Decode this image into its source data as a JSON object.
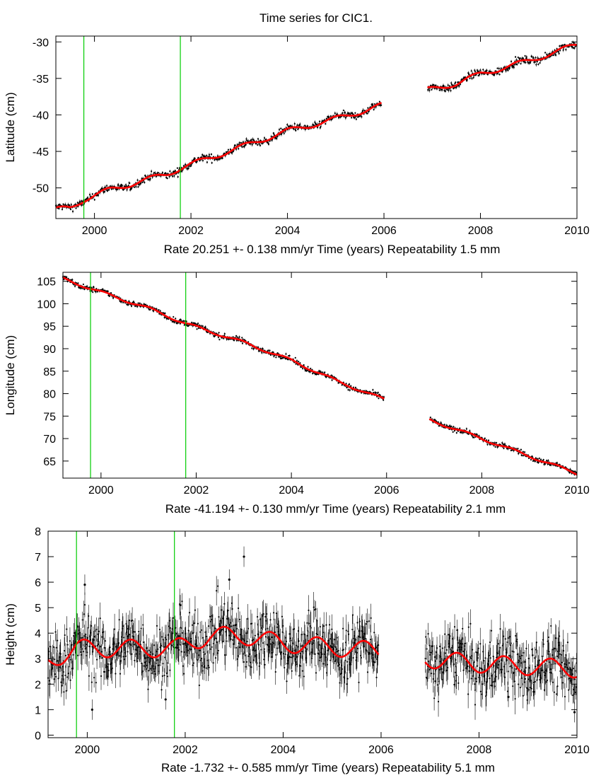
{
  "figure_title": "Time series for CIC1.",
  "colors": {
    "data": "#000000",
    "fit": "#ff0000",
    "event_line": "#00cc00"
  },
  "chart_data": [
    {
      "type": "scatter",
      "id": "latitude",
      "title": "Time series for CIC1.",
      "ylabel": "Latitude (cm)",
      "xlabel": "Rate 20.251 +- 0.138 mm/yr    Time (years)    Repeatability 1.5 mm",
      "xlim": [
        1999.2,
        2010.0
      ],
      "ylim": [
        -54.2,
        -29.2
      ],
      "xticks": [
        2000,
        2002,
        2004,
        2006,
        2008,
        2010
      ],
      "yticks": [
        -50,
        -45,
        -40,
        -35,
        -30
      ],
      "event_lines": [
        1999.78,
        2001.78
      ],
      "gap": [
        2005.95,
        2006.9
      ],
      "trend_knots": [
        [
          1999.2,
          -53.0
        ],
        [
          1999.5,
          -52.7
        ],
        [
          1999.78,
          -51.6
        ],
        [
          2000.3,
          -50.3
        ],
        [
          2000.8,
          -49.4
        ],
        [
          2001.5,
          -48.1
        ],
        [
          2001.78,
          -47.3
        ],
        [
          2002.3,
          -46.1
        ],
        [
          2003.0,
          -44.5
        ],
        [
          2004.0,
          -42.2
        ],
        [
          2004.8,
          -40.9
        ],
        [
          2005.5,
          -39.6
        ],
        [
          2005.95,
          -38.7
        ],
        [
          2006.9,
          -36.6
        ],
        [
          2007.5,
          -35.7
        ],
        [
          2008.0,
          -34.4
        ],
        [
          2009.0,
          -32.6
        ],
        [
          2010.0,
          -30.4
        ]
      ],
      "residual_amplitude": 0.25,
      "fit_wobble": 0.35,
      "error_bar": 0.2
    },
    {
      "type": "scatter",
      "id": "longitude",
      "ylabel": "Longitude (cm)",
      "xlabel": "Rate -41.194 +- 0.130 mm/yr    Time (years)    Repeatability 2.1 mm",
      "xlim": [
        1999.2,
        2010.0
      ],
      "ylim": [
        61.2,
        107.0
      ],
      "xticks": [
        2000,
        2002,
        2004,
        2006,
        2008,
        2010
      ],
      "yticks": [
        65,
        70,
        75,
        80,
        85,
        90,
        95,
        100,
        105
      ],
      "event_lines": [
        1999.78,
        2001.78
      ],
      "gap": [
        2005.95,
        2006.9
      ],
      "trend_knots": [
        [
          1999.2,
          105.6
        ],
        [
          1999.78,
          103.4
        ],
        [
          2000.3,
          101.5
        ],
        [
          2001.0,
          99.0
        ],
        [
          2001.78,
          95.6
        ],
        [
          2003.0,
          91.4
        ],
        [
          2004.0,
          87.4
        ],
        [
          2005.0,
          82.6
        ],
        [
          2005.95,
          78.7
        ],
        [
          2006.9,
          74.2
        ],
        [
          2008.0,
          70.0
        ],
        [
          2009.0,
          66.1
        ],
        [
          2010.0,
          62.2
        ]
      ],
      "residual_amplitude": 0.3,
      "fit_wobble": 0.3,
      "error_bar": 0.25
    },
    {
      "type": "scatter",
      "id": "height",
      "ylabel": "Height (cm)",
      "xlabel": "Rate -1.732 +- 0.585 mm/yr    Time (years)    Repeatability 5.1 mm",
      "xlim": [
        1999.2,
        2010.0
      ],
      "ylim": [
        -0.1,
        8.0
      ],
      "xticks": [
        2000,
        2002,
        2004,
        2006,
        2008,
        2010
      ],
      "yticks": [
        0,
        1,
        2,
        3,
        4,
        5,
        6,
        7,
        8
      ],
      "event_lines": [
        1999.78,
        2001.78
      ],
      "gap": [
        2005.95,
        2006.9
      ],
      "trend_knots": [
        [
          1999.2,
          2.9
        ],
        [
          1999.78,
          3.4
        ],
        [
          2000.5,
          3.4
        ],
        [
          2001.78,
          3.4
        ],
        [
          2002.5,
          3.9
        ],
        [
          2003.2,
          3.9
        ],
        [
          2004.0,
          3.6
        ],
        [
          2005.95,
          3.3
        ],
        [
          2006.9,
          3.0
        ],
        [
          2008.0,
          2.8
        ],
        [
          2010.0,
          2.6
        ]
      ],
      "residual_amplitude": 0.6,
      "fit_wobble": 0.35,
      "error_bar": 0.45,
      "outliers": [
        [
          2003.2,
          7.0
        ],
        [
          1999.95,
          5.9
        ],
        [
          2002.9,
          6.1
        ],
        [
          2001.9,
          5.1
        ],
        [
          2008.6,
          1.5
        ],
        [
          2009.95,
          0.9
        ],
        [
          2001.6,
          1.4
        ],
        [
          2000.1,
          1.0
        ]
      ]
    }
  ]
}
